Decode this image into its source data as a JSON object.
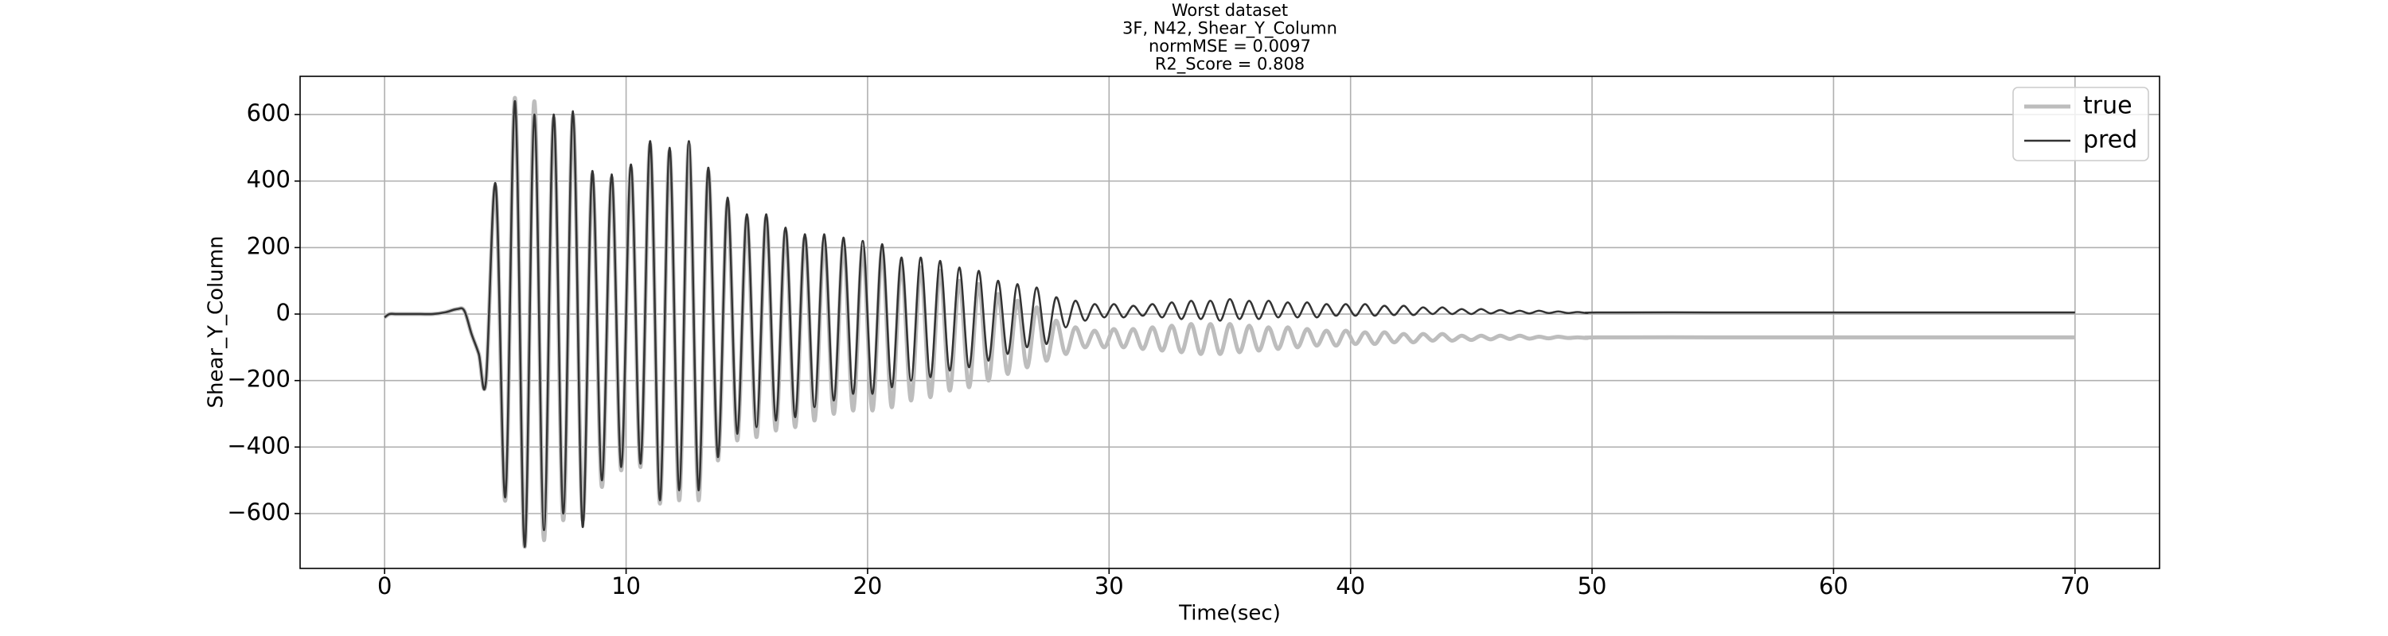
{
  "chart_data": {
    "type": "line",
    "title": [
      "Worst dataset",
      "3F, N42, Shear_Y_Column",
      "normMSE = 0.0097",
      "R2_Score = 0.808"
    ],
    "xlabel": "Time(sec)",
    "ylabel": "Shear_Y_Column",
    "x": [
      0,
      0.2,
      0.5,
      1,
      1.5,
      2,
      2.5,
      3,
      3.3,
      3.6,
      3.9,
      4.2,
      4.6,
      5,
      5.4,
      5.8,
      6.2,
      6.6,
      7,
      7.4,
      7.8,
      8.2,
      8.6,
      9,
      9.4,
      9.8,
      10.2,
      10.6,
      11,
      11.4,
      11.8,
      12.2,
      12.6,
      13,
      13.4,
      13.8,
      14.2,
      14.6,
      15,
      15.4,
      15.8,
      16.2,
      16.6,
      17,
      17.4,
      17.8,
      18.2,
      18.6,
      19,
      19.4,
      19.8,
      20.2,
      20.6,
      21,
      21.4,
      21.8,
      22.2,
      22.6,
      23,
      23.4,
      23.8,
      24.2,
      24.6,
      25,
      25.4,
      25.8,
      26.2,
      26.6,
      27,
      27.4,
      27.8,
      28.2,
      28.6,
      29,
      29.4,
      29.8,
      30.2,
      30.6,
      31,
      31.4,
      31.8,
      32.2,
      32.6,
      33,
      33.4,
      33.8,
      34.2,
      34.6,
      35,
      35.4,
      35.8,
      36.2,
      36.6,
      37,
      37.4,
      37.8,
      38.2,
      38.6,
      39,
      39.4,
      39.8,
      40.2,
      40.6,
      41,
      41.4,
      41.8,
      42.2,
      42.6,
      43,
      43.4,
      43.8,
      44.2,
      44.6,
      45,
      45.4,
      45.8,
      46.2,
      46.6,
      47,
      47.4,
      47.8,
      48.2,
      48.6,
      49,
      49.4,
      49.8,
      50.2,
      55,
      60,
      65,
      70
    ],
    "series": [
      {
        "name": "true",
        "color": "#bdbdbd",
        "width": 5,
        "values": [
          -10,
          0,
          0,
          0,
          0,
          0,
          5,
          15,
          10,
          -60,
          -120,
          -200,
          380,
          -560,
          650,
          -700,
          640,
          -680,
          590,
          -620,
          600,
          -620,
          420,
          -520,
          410,
          -470,
          440,
          -460,
          510,
          -570,
          490,
          -560,
          510,
          -560,
          430,
          -440,
          340,
          -380,
          290,
          -370,
          290,
          -350,
          250,
          -340,
          230,
          -320,
          220,
          -300,
          210,
          -290,
          200,
          -290,
          190,
          -280,
          150,
          -260,
          140,
          -250,
          130,
          -230,
          100,
          -220,
          90,
          -200,
          60,
          -180,
          40,
          -160,
          20,
          -140,
          -20,
          -120,
          -40,
          -100,
          -50,
          -100,
          -45,
          -100,
          -45,
          -105,
          -40,
          -110,
          -35,
          -115,
          -30,
          -120,
          -30,
          -120,
          -30,
          -115,
          -35,
          -110,
          -40,
          -105,
          -40,
          -100,
          -45,
          -95,
          -50,
          -95,
          -50,
          -90,
          -55,
          -90,
          -55,
          -85,
          -60,
          -85,
          -60,
          -80,
          -60,
          -80,
          -65,
          -78,
          -65,
          -76,
          -65,
          -75,
          -65,
          -74,
          -68,
          -73,
          -68,
          -72,
          -70,
          -72,
          -70,
          -70,
          -70,
          -70,
          -70
        ]
      },
      {
        "name": "pred",
        "color": "#333333",
        "width": 2.5,
        "values": [
          -10,
          0,
          0,
          0,
          0,
          0,
          5,
          15,
          10,
          -60,
          -120,
          -200,
          390,
          -550,
          640,
          -700,
          600,
          -650,
          600,
          -600,
          610,
          -640,
          430,
          -500,
          420,
          -460,
          450,
          -450,
          520,
          -560,
          500,
          -530,
          520,
          -530,
          440,
          -430,
          350,
          -360,
          300,
          -340,
          300,
          -320,
          260,
          -310,
          240,
          -280,
          240,
          -260,
          230,
          -240,
          220,
          -240,
          210,
          -220,
          170,
          -200,
          170,
          -190,
          160,
          -170,
          140,
          -160,
          130,
          -140,
          100,
          -120,
          90,
          -100,
          80,
          -90,
          50,
          -40,
          40,
          -20,
          30,
          -10,
          30,
          -10,
          25,
          -5,
          30,
          -10,
          35,
          -15,
          40,
          -15,
          40,
          -20,
          45,
          -15,
          40,
          -15,
          40,
          -10,
          35,
          -10,
          35,
          -10,
          30,
          -5,
          30,
          -5,
          30,
          -5,
          25,
          -3,
          25,
          -3,
          20,
          0,
          20,
          0,
          15,
          0,
          15,
          2,
          12,
          2,
          10,
          2,
          10,
          3,
          8,
          3,
          6,
          3,
          5,
          5,
          5,
          5,
          5
        ]
      }
    ],
    "xlim": [
      -3.5,
      73.5
    ],
    "ylim": [
      -765,
      715
    ],
    "xticks": [
      0,
      10,
      20,
      30,
      40,
      50,
      60,
      70
    ],
    "yticks": [
      {
        "value": -600,
        "label": "−600"
      },
      {
        "value": -400,
        "label": "−400"
      },
      {
        "value": -200,
        "label": "−200"
      },
      0,
      200,
      400,
      600
    ],
    "grid": true,
    "legend": "upper right"
  }
}
